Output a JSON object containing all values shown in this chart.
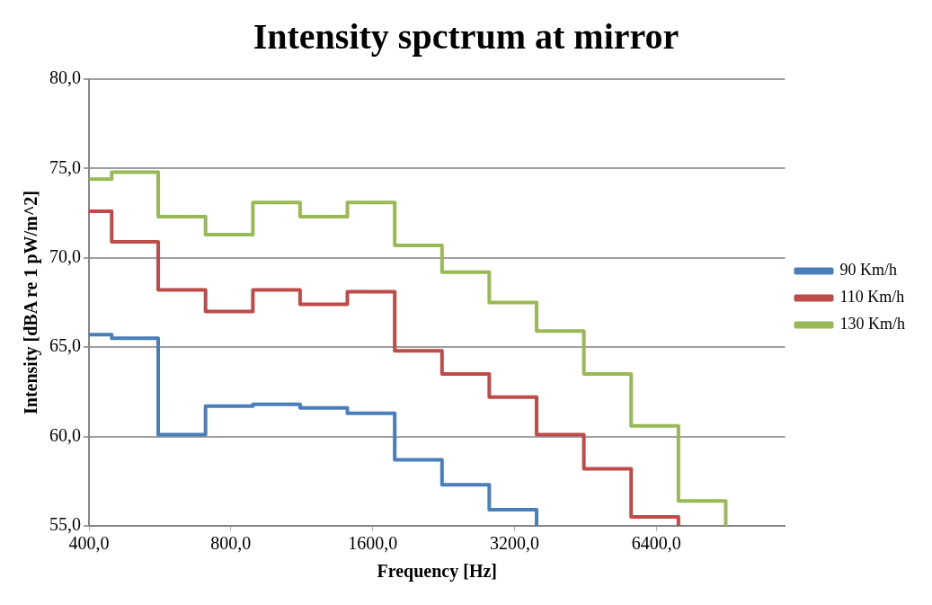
{
  "chart_data": {
    "type": "step",
    "title": "Intensity spctrum at mirror",
    "xlabel": "Frequency [Hz]",
    "ylabel": "Intensity [dBA re 1 pW/m^2]",
    "log": "x",
    "xlim": [
      400,
      12000
    ],
    "xticks": [
      {
        "value": 400,
        "label": "400,0"
      },
      {
        "value": 800,
        "label": "800,0"
      },
      {
        "value": 1600,
        "label": "1600,0"
      },
      {
        "value": 3200,
        "label": "3200,0"
      },
      {
        "value": 6400,
        "label": "6400,0"
      }
    ],
    "ylim": [
      55,
      80
    ],
    "yticks": [
      {
        "value": 55,
        "label": "55,0"
      },
      {
        "value": 60,
        "label": "60,0"
      },
      {
        "value": 65,
        "label": "65,0"
      },
      {
        "value": 70,
        "label": "70,0"
      },
      {
        "value": 75,
        "label": "75,0"
      },
      {
        "value": 80,
        "label": "80,0"
      }
    ],
    "grid": "y",
    "legend": "right",
    "marker": "none",
    "line_style": "solid",
    "series": [
      {
        "name": "90 Km/h",
        "color": "#4a7ebb",
        "x": [
          400,
          447,
          561,
          707,
          891,
          1122,
          1414,
          1782,
          2245,
          2828,
          3564
        ],
        "values": [
          65.7,
          65.5,
          60.1,
          61.7,
          61.8,
          61.6,
          61.3,
          58.7,
          57.3,
          55.9,
          55
        ]
      },
      {
        "name": "110 Km/h",
        "color": "#be4b48",
        "x": [
          400,
          447,
          561,
          707,
          891,
          1122,
          1414,
          1782,
          2245,
          2828,
          3564,
          4490,
          5657,
          7127
        ],
        "values": [
          72.6,
          70.9,
          68.2,
          67.0,
          68.2,
          67.4,
          68.1,
          64.8,
          63.5,
          62.2,
          60.1,
          58.2,
          55.5,
          55
        ]
      },
      {
        "name": "130 Km/h",
        "color": "#98b954",
        "x": [
          400,
          447,
          561,
          707,
          891,
          1122,
          1414,
          1782,
          2245,
          2828,
          3564,
          4490,
          5657,
          7127,
          8980
        ],
        "values": [
          74.4,
          74.8,
          72.3,
          71.3,
          73.1,
          72.3,
          73.1,
          70.7,
          69.2,
          67.5,
          65.9,
          63.5,
          60.6,
          56.4,
          55
        ]
      }
    ]
  }
}
